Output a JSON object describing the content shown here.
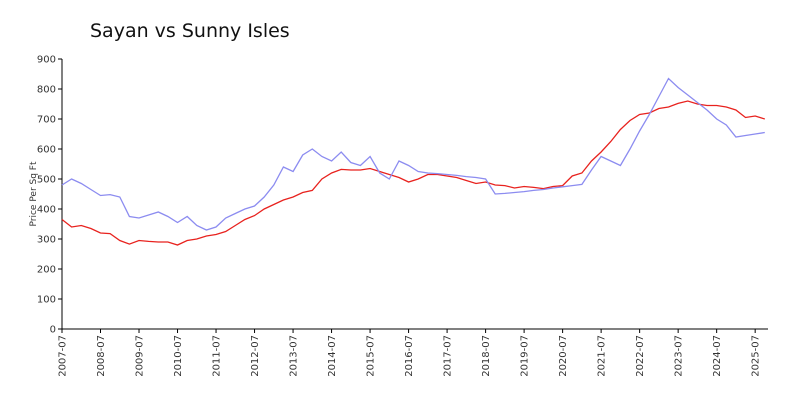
{
  "chart_data": {
    "type": "line",
    "title": "Sayan vs Sunny Isles",
    "y_label": "Price Per Sq Ft",
    "x": [
      "2007-07",
      "2007-10",
      "2008-01",
      "2008-04",
      "2008-07",
      "2008-10",
      "2009-01",
      "2009-04",
      "2009-07",
      "2009-10",
      "2010-01",
      "2010-04",
      "2010-07",
      "2010-10",
      "2011-01",
      "2011-04",
      "2011-07",
      "2011-10",
      "2012-01",
      "2012-04",
      "2012-07",
      "2012-10",
      "2013-01",
      "2013-04",
      "2013-07",
      "2013-10",
      "2014-01",
      "2014-04",
      "2014-07",
      "2014-10",
      "2015-01",
      "2015-04",
      "2015-07",
      "2015-10",
      "2016-01",
      "2016-04",
      "2016-07",
      "2016-10",
      "2017-01",
      "2017-04",
      "2017-07",
      "2017-10",
      "2018-01",
      "2018-04",
      "2018-07",
      "2018-10",
      "2019-01",
      "2019-04",
      "2019-07",
      "2019-10",
      "2020-01",
      "2020-04",
      "2020-07",
      "2020-10",
      "2021-01",
      "2021-04",
      "2021-07",
      "2021-10",
      "2022-01",
      "2022-04",
      "2022-07",
      "2022-10",
      "2023-01",
      "2023-04",
      "2023-07",
      "2023-10",
      "2024-01",
      "2024-04",
      "2024-07",
      "2024-10",
      "2025-01",
      "2025-04",
      "2025-07",
      "2025-10"
    ],
    "series": [
      {
        "color": "#e8221e",
        "values": [
          365,
          340,
          345,
          335,
          320,
          318,
          295,
          283,
          295,
          292,
          290,
          290,
          280,
          295,
          300,
          310,
          315,
          325,
          345,
          365,
          378,
          400,
          415,
          430,
          440,
          455,
          462,
          500,
          520,
          532,
          530,
          530,
          535,
          525,
          515,
          505,
          490,
          500,
          515,
          515,
          510,
          505,
          495,
          485,
          490,
          480,
          478,
          470,
          475,
          472,
          468,
          475,
          478,
          510,
          520,
          560,
          590,
          625,
          665,
          695,
          715,
          720,
          735,
          740,
          752,
          760,
          750,
          745,
          745,
          740,
          730,
          705,
          710,
          700
        ]
      },
      {
        "color": "#8c8cf0",
        "values": [
          480,
          500,
          485,
          465,
          445,
          448,
          440,
          375,
          370,
          380,
          390,
          375,
          355,
          375,
          345,
          330,
          340,
          370,
          385,
          400,
          410,
          440,
          480,
          540,
          525,
          580,
          600,
          575,
          560,
          590,
          555,
          545,
          575,
          520,
          500,
          560,
          545,
          525,
          520,
          518,
          515,
          512,
          508,
          505,
          500,
          450,
          452,
          455,
          458,
          462,
          465,
          470,
          474,
          478,
          482,
          530,
          575,
          560,
          545,
          600,
          660,
          715,
          775,
          835,
          805,
          780,
          755,
          730,
          700,
          680,
          640,
          645,
          650,
          655
        ]
      }
    ],
    "xlim": [
      "2007-07",
      "2025-11"
    ],
    "xticks": [
      "2007-07",
      "2008-07",
      "2009-07",
      "2010-07",
      "2011-07",
      "2012-07",
      "2013-07",
      "2014-07",
      "2015-07",
      "2016-07",
      "2017-07",
      "2018-07",
      "2019-07",
      "2020-07",
      "2021-07",
      "2022-07",
      "2023-07",
      "2024-07",
      "2025-07"
    ],
    "ylim": [
      0,
      900
    ],
    "yticks": [
      0,
      100,
      200,
      300,
      400,
      500,
      600,
      700,
      800,
      900
    ],
    "grid": false
  }
}
